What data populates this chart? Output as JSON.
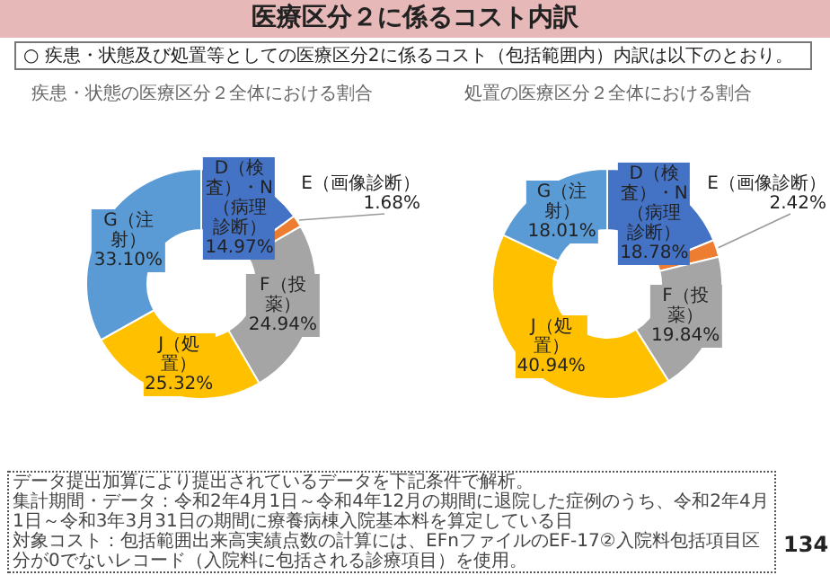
{
  "chart_data": [
    {
      "type": "other",
      "title": "医療区分２に係るコスト内訳",
      "subtitle": "○ 疾患・状態及び処置等としての医療区分2に係るコスト（包括範囲内）内訳は以下のとおり。",
      "annotations": [
        "データ提出加算により提出されているデータを下記条件で解析。",
        "集計期間・データ：令和2年4月1日～令和4年12月の期間に退院した症例のうち、令和2年4月1日～令和3年3月31日の期間に療養病棟入院基本料を算定している日",
        "対象コスト：包括範囲出来高実績点数の計算には、EFnファイルのEF-17②入院料包括項目区分が0でないレコード（入院料に包括される診療項目）を使用。",
        "134"
      ]
    },
    {
      "type": "donut",
      "title": "疾患・状態の医療区分２全体における割合",
      "categories": [
        "D（検査）・N（病理診断）",
        "E（画像診断）",
        "F（投薬）",
        "J（処置）",
        "G（注射）"
      ],
      "values": [
        14.97,
        1.68,
        24.94,
        25.32,
        33.1
      ],
      "colors": [
        "#4472c4",
        "#ed7d31",
        "#a5a5a5",
        "#ffc000",
        "#5b9bd5"
      ],
      "value_labels": [
        "14.97%",
        "1.68%",
        "24.94%",
        "25.32%",
        "33.10%"
      ]
    },
    {
      "type": "donut",
      "title": "処置の医療区分２全体における割合",
      "categories": [
        "D（検査）・N（病理診断）",
        "E（画像診断）",
        "F（投薬）",
        "J（処置）",
        "G（注射）"
      ],
      "values": [
        18.78,
        2.42,
        19.84,
        40.94,
        18.01
      ],
      "colors": [
        "#4472c4",
        "#ed7d31",
        "#a5a5a5",
        "#ffc000",
        "#5b9bd5"
      ],
      "value_labels": [
        "18.78%",
        "2.42%",
        "19.84%",
        "40.94%",
        "18.01%"
      ]
    }
  ]
}
